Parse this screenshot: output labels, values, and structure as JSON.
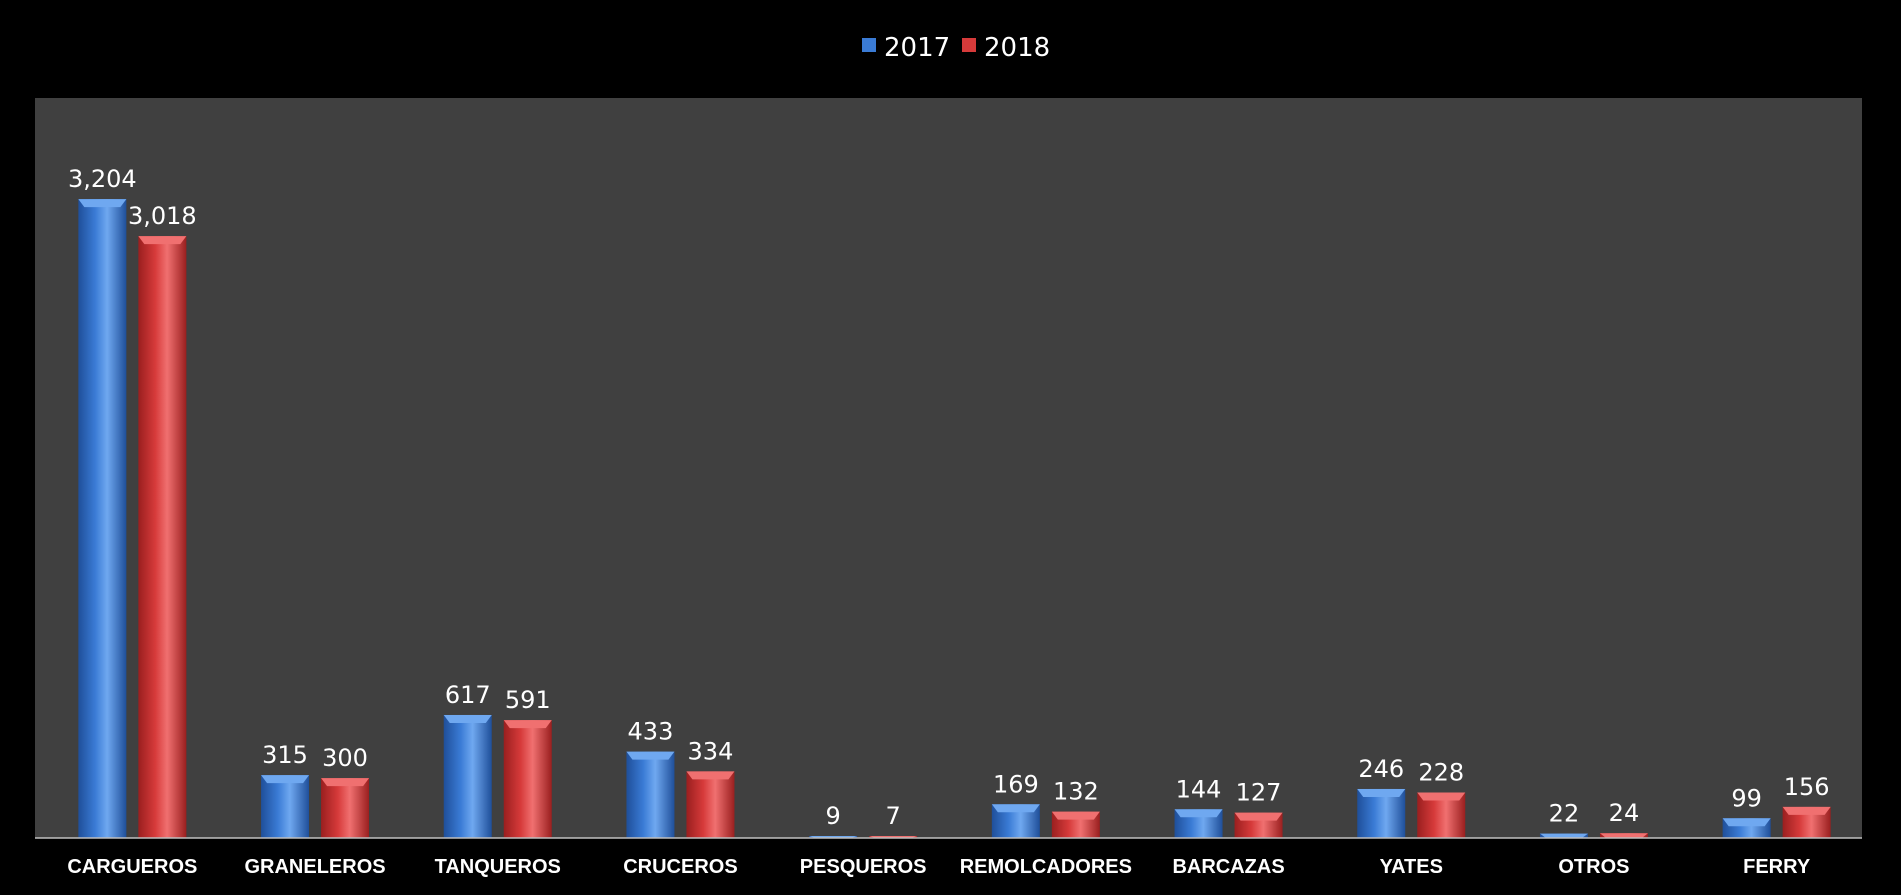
{
  "chart_data": {
    "type": "bar",
    "title": "",
    "categories": [
      "CARGUEROS",
      "GRANELEROS",
      "TANQUEROS",
      "CRUCEROS",
      "PESQUEROS",
      "REMOLCADORES",
      "BARCAZAS",
      "YATES",
      "OTROS",
      "FERRY"
    ],
    "series": [
      {
        "name": "2017",
        "values": [
          3204,
          315,
          617,
          433,
          9,
          169,
          144,
          246,
          22,
          99
        ]
      },
      {
        "name": "2018",
        "values": [
          3018,
          300,
          591,
          334,
          7,
          132,
          127,
          228,
          24,
          156
        ]
      }
    ],
    "data_labels": [
      [
        "3,204",
        "315",
        "617",
        "433",
        "9",
        "169",
        "144",
        "246",
        "22",
        "99"
      ],
      [
        "3,018",
        "300",
        "591",
        "334",
        "7",
        "132",
        "127",
        "228",
        "24",
        "156"
      ]
    ],
    "ylim": [
      0,
      3400
    ],
    "grid": false,
    "legend_position": "top-center",
    "colors": {
      "page_background": "#000000",
      "plot_background": "#404040",
      "series": [
        "#3a7bd5",
        "#d63a3a"
      ],
      "series_light": [
        "#6fa8f0",
        "#f07070"
      ],
      "series_dark": [
        "#1f4f9a",
        "#9a1f1f"
      ],
      "text": "#ffffff"
    }
  }
}
